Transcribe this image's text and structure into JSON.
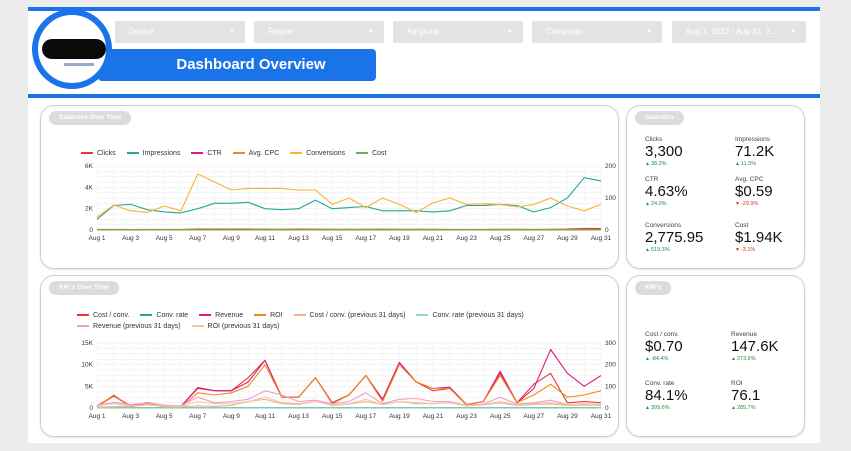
{
  "filters": [
    {
      "label": "Device"
    },
    {
      "label": "Region"
    },
    {
      "label": "Ad group"
    },
    {
      "label": "Campaign"
    },
    {
      "label": "Aug 1, 2023 - Aug 31, 2..."
    }
  ],
  "header": {
    "title": "Dashboard Overview"
  },
  "stats_time": {
    "pill": "Statistics Over Time",
    "chart_data": {
      "type": "line",
      "legend": [
        "Clicks",
        "Impressions",
        "CTR",
        "Avg. CPC",
        "Conversions",
        "Cost"
      ],
      "x": [
        "Aug 1",
        "Aug 2",
        "Aug 3",
        "Aug 4",
        "Aug 5",
        "Aug 6",
        "Aug 7",
        "Aug 8",
        "Aug 9",
        "Aug 10",
        "Aug 11",
        "Aug 12",
        "Aug 13",
        "Aug 14",
        "Aug 15",
        "Aug 16",
        "Aug 17",
        "Aug 18",
        "Aug 19",
        "Aug 20",
        "Aug 21",
        "Aug 22",
        "Aug 23",
        "Aug 24",
        "Aug 25",
        "Aug 26",
        "Aug 27",
        "Aug 28",
        "Aug 29",
        "Aug 30",
        "Aug 31"
      ],
      "x_ticks": [
        "Aug 1",
        "Aug 3",
        "Aug 5",
        "Aug 7",
        "Aug 9",
        "Aug 11",
        "Aug 13",
        "Aug 15",
        "Aug 17",
        "Aug 19",
        "Aug 21",
        "Aug 23",
        "Aug 25",
        "Aug 27",
        "Aug 29",
        "Aug 31"
      ],
      "y_ticks_left": [
        "6K",
        "4K",
        "2K",
        "0"
      ],
      "y_ticks_right": [
        "200",
        "100",
        "0"
      ],
      "ylim_left": [
        0,
        6000
      ],
      "ylim_right": [
        0,
        200
      ],
      "series": [
        {
          "name": "Clicks",
          "axis": "left",
          "color": "#e53935",
          "values": [
            60,
            55,
            50,
            52,
            55,
            60,
            80,
            90,
            85,
            80,
            75,
            70,
            80,
            75,
            70,
            65,
            70,
            75,
            70,
            65,
            70,
            60,
            55,
            60,
            70,
            65,
            60,
            70,
            80,
            150,
            130
          ]
        },
        {
          "name": "Impressions",
          "axis": "left",
          "color": "#26a69a",
          "values": [
            1000,
            2300,
            2400,
            1900,
            1700,
            1600,
            2000,
            2500,
            2500,
            2600,
            2000,
            1900,
            2000,
            2800,
            2000,
            2100,
            2200,
            1800,
            1800,
            1800,
            1700,
            1800,
            2300,
            2300,
            2400,
            2300,
            1700,
            2100,
            3000,
            4900,
            4600
          ]
        },
        {
          "name": "CTR",
          "axis": "left",
          "color": "#d81b8c",
          "values": [
            40,
            40,
            40,
            40,
            40,
            40,
            40,
            40,
            40,
            40,
            40,
            40,
            40,
            40,
            40,
            40,
            40,
            40,
            40,
            40,
            40,
            40,
            40,
            40,
            40,
            40,
            40,
            40,
            40,
            40,
            40
          ]
        },
        {
          "name": "Avg. CPC",
          "axis": "left",
          "color": "#ef8a17",
          "values": [
            30,
            30,
            30,
            30,
            30,
            30,
            30,
            30,
            30,
            30,
            30,
            30,
            30,
            30,
            30,
            30,
            30,
            30,
            30,
            30,
            30,
            30,
            30,
            30,
            30,
            30,
            30,
            30,
            30,
            30,
            30
          ]
        },
        {
          "name": "Conversions",
          "axis": "right",
          "color": "#f9b233",
          "values": [
            40,
            78,
            60,
            55,
            75,
            60,
            175,
            150,
            125,
            130,
            130,
            130,
            125,
            125,
            80,
            100,
            70,
            100,
            80,
            55,
            85,
            100,
            80,
            82,
            80,
            72,
            80,
            100,
            75,
            60,
            80
          ]
        },
        {
          "name": "Cost",
          "axis": "left",
          "color": "#6ab04c",
          "values": [
            30,
            30,
            30,
            30,
            30,
            30,
            30,
            30,
            30,
            30,
            30,
            30,
            30,
            30,
            30,
            30,
            30,
            30,
            30,
            30,
            30,
            30,
            30,
            30,
            30,
            30,
            30,
            30,
            30,
            30,
            30
          ]
        }
      ]
    }
  },
  "statistics": {
    "pill": "Statistics",
    "items": [
      {
        "label": "Clicks",
        "value": "3,300",
        "change": "38.2%",
        "neg": false
      },
      {
        "label": "Impressions",
        "value": "71.2K",
        "change": "11.5%",
        "neg": false
      },
      {
        "label": "CTR",
        "value": "4.63%",
        "change": "24.0%",
        "neg": false
      },
      {
        "label": "Avg. CPC",
        "value": "$0.59",
        "change": "-29.9%",
        "neg": true
      },
      {
        "label": "Conversions",
        "value": "2,775.95",
        "change": "519.3%",
        "neg": false
      },
      {
        "label": "Cost",
        "value": "$1.94K",
        "change": "-3.1%",
        "neg": true
      }
    ]
  },
  "kpi_time": {
    "pill": "KPI`s Over Time",
    "chart_data": {
      "type": "line",
      "legend_row1": [
        "Cost / conv.",
        "Conv. rate",
        "Revenue",
        "ROI",
        "Cost / conv. (previous 31 days)",
        "Conv. rate (previous 31 days)"
      ],
      "legend_row2": [
        "Revenue (previous 31 days)",
        "ROI (previous 31 days)"
      ],
      "x": [
        "Aug 1",
        "Aug 2",
        "Aug 3",
        "Aug 4",
        "Aug 5",
        "Aug 6",
        "Aug 7",
        "Aug 8",
        "Aug 9",
        "Aug 10",
        "Aug 11",
        "Aug 12",
        "Aug 13",
        "Aug 14",
        "Aug 15",
        "Aug 16",
        "Aug 17",
        "Aug 18",
        "Aug 19",
        "Aug 20",
        "Aug 21",
        "Aug 22",
        "Aug 23",
        "Aug 24",
        "Aug 25",
        "Aug 26",
        "Aug 27",
        "Aug 28",
        "Aug 29",
        "Aug 30",
        "Aug 31"
      ],
      "x_ticks": [
        "Aug 1",
        "Aug 3",
        "Aug 5",
        "Aug 7",
        "Aug 9",
        "Aug 11",
        "Aug 13",
        "Aug 15",
        "Aug 17",
        "Aug 19",
        "Aug 21",
        "Aug 23",
        "Aug 25",
        "Aug 27",
        "Aug 29",
        "Aug 31"
      ],
      "y_ticks_left": [
        "15K",
        "10K",
        "5K",
        "0"
      ],
      "y_ticks_right": [
        "300",
        "200",
        "100",
        "0"
      ],
      "ylim_left": [
        0,
        15000
      ],
      "ylim_right": [
        0,
        300
      ],
      "series": [
        {
          "name": "Cost / conv.",
          "axis": "left",
          "color": "#e53935",
          "values": [
            300,
            2800,
            300,
            1200,
            500,
            400,
            4500,
            4000,
            4000,
            7000,
            11000,
            2500,
            2500,
            7000,
            1200,
            3000,
            7500,
            2000,
            10500,
            6000,
            4000,
            4500,
            700,
            1500,
            8000,
            1200,
            5500,
            8000,
            1200,
            1500,
            1200
          ]
        },
        {
          "name": "Conv. rate",
          "axis": "left",
          "color": "#26a69a",
          "values": [
            100,
            100,
            100,
            100,
            100,
            100,
            100,
            100,
            100,
            100,
            100,
            100,
            100,
            100,
            100,
            100,
            100,
            100,
            100,
            100,
            100,
            100,
            100,
            100,
            100,
            100,
            100,
            100,
            100,
            100,
            100
          ]
        },
        {
          "name": "Revenue",
          "axis": "left",
          "color": "#d81b8c",
          "values": [
            500,
            2800,
            500,
            1200,
            500,
            400,
            4700,
            4000,
            4000,
            6000,
            11000,
            2500,
            2500,
            7000,
            1200,
            3000,
            7500,
            2000,
            10500,
            6000,
            4500,
            4800,
            800,
            1500,
            8500,
            1200,
            4500,
            13500,
            8000,
            5000,
            7500
          ]
        },
        {
          "name": "ROI",
          "axis": "right",
          "color": "#ef8a17",
          "values": [
            5,
            60,
            5,
            20,
            5,
            5,
            70,
            60,
            70,
            100,
            200,
            50,
            50,
            140,
            20,
            60,
            150,
            30,
            200,
            120,
            90,
            90,
            15,
            30,
            150,
            25,
            60,
            110,
            50,
            60,
            80
          ]
        },
        {
          "name": "Cost / conv. (previous 31 days)",
          "axis": "left",
          "color": "#f4b183",
          "values": [
            200,
            300,
            400,
            700,
            400,
            300,
            500,
            400,
            600,
            1500,
            2000,
            1000,
            800,
            1500,
            600,
            900,
            1500,
            800,
            1500,
            1000,
            1000,
            1200,
            500,
            700,
            1200,
            600,
            800,
            900,
            600,
            700,
            600
          ]
        },
        {
          "name": "Conv. rate (previous 31 days)",
          "axis": "left",
          "color": "#8fd9c8",
          "values": [
            50,
            50,
            50,
            50,
            50,
            50,
            50,
            50,
            50,
            50,
            50,
            50,
            50,
            50,
            50,
            50,
            50,
            50,
            50,
            50,
            50,
            50,
            50,
            50,
            50,
            50,
            50,
            50,
            50,
            50,
            50
          ]
        },
        {
          "name": "Revenue (previous 31 days)",
          "axis": "left",
          "color": "#ef9ad2",
          "values": [
            700,
            1300,
            800,
            1100,
            700,
            500,
            2500,
            1200,
            1500,
            2000,
            4000,
            3000,
            1500,
            1800,
            1000,
            1500,
            3500,
            1000,
            2000,
            2200,
            1500,
            1500,
            600,
            900,
            2500,
            900,
            1200,
            1800,
            800,
            1000,
            800
          ]
        },
        {
          "name": "ROI (previous 31 days)",
          "axis": "right",
          "color": "#f7c59f",
          "values": [
            10,
            20,
            10,
            15,
            10,
            8,
            30,
            20,
            20,
            30,
            50,
            25,
            20,
            30,
            15,
            20,
            40,
            15,
            30,
            25,
            20,
            25,
            10,
            15,
            30,
            15,
            20,
            25,
            15,
            20,
            15
          ]
        }
      ]
    }
  },
  "kpis": {
    "pill": "KPI's",
    "items": [
      {
        "label": "Cost / conv.",
        "value": "$0.70",
        "change": "-84.4%",
        "neg": false
      },
      {
        "label": "Revenue",
        "value": "147.6K",
        "change": "273.6%",
        "neg": false
      },
      {
        "label": "Conv. rate",
        "value": "84.1%",
        "change": "399.6%",
        "neg": false
      },
      {
        "label": "ROI",
        "value": "76.1",
        "change": "285.7%",
        "neg": false
      }
    ]
  }
}
